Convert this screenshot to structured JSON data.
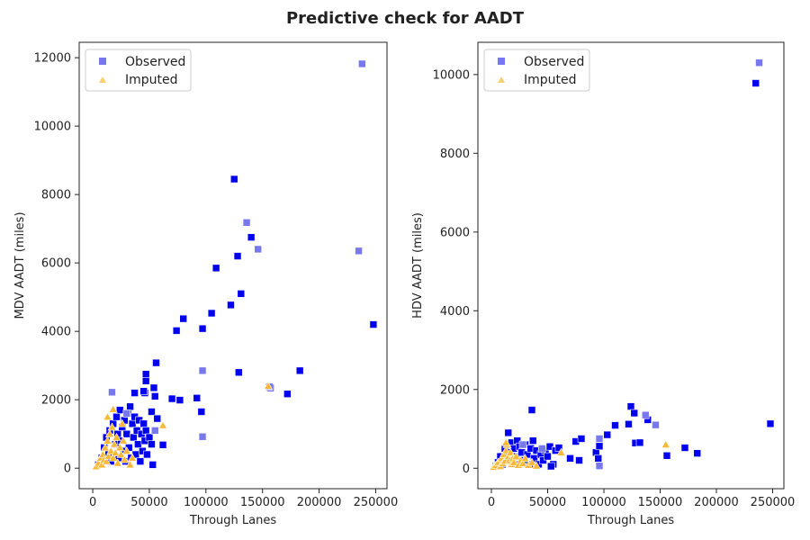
{
  "figure": {
    "title": "Predictive check for AADT"
  },
  "colors": {
    "observed_solid": "#0000ee",
    "observed_faded": "#7777ee",
    "imputed": "#f8b938",
    "imputed_faded": "#f9cf72",
    "axis": "#222222"
  },
  "chart_data": [
    {
      "type": "scatter",
      "xlabel": "Through Lanes",
      "ylabel": "MDV AADT (miles)",
      "xlim": [
        -12000,
        260000
      ],
      "ylim": [
        -600,
        12450
      ],
      "xticks": [
        0,
        50000,
        100000,
        150000,
        200000,
        250000
      ],
      "yticks": [
        0,
        2000,
        4000,
        6000,
        8000,
        10000,
        12000
      ],
      "legend": {
        "position": "top-left",
        "entries": [
          "Observed",
          "Imputed"
        ]
      },
      "series": [
        {
          "name": "Observed",
          "marker": "square",
          "points": [
            [
              5000,
              100,
              1
            ],
            [
              8000,
              300,
              1
            ],
            [
              10000,
              600,
              1
            ],
            [
              12000,
              900,
              1
            ],
            [
              14000,
              400,
              1
            ],
            [
              15000,
              1100,
              1
            ],
            [
              16000,
              200,
              1
            ],
            [
              18000,
              1300,
              1
            ],
            [
              20000,
              700,
              1
            ],
            [
              21000,
              1500,
              1
            ],
            [
              22000,
              1000,
              1
            ],
            [
              23000,
              300,
              1
            ],
            [
              24000,
              1700,
              1
            ],
            [
              25000,
              800,
              1
            ],
            [
              26000,
              1200,
              1
            ],
            [
              27000,
              500,
              1
            ],
            [
              28000,
              1400,
              1
            ],
            [
              29000,
              200,
              1
            ],
            [
              30000,
              1000,
              1
            ],
            [
              31000,
              1600,
              1
            ],
            [
              32000,
              600,
              1
            ],
            [
              33000,
              1800,
              1
            ],
            [
              34000,
              300,
              1
            ],
            [
              35000,
              1300,
              1
            ],
            [
              36000,
              900,
              1
            ],
            [
              37000,
              1500,
              1
            ],
            [
              38000,
              400,
              1
            ],
            [
              39000,
              1100,
              1
            ],
            [
              40000,
              700,
              1
            ],
            [
              41000,
              1400,
              1
            ],
            [
              42000,
              200,
              1
            ],
            [
              43000,
              1000,
              1
            ],
            [
              44000,
              500,
              1
            ],
            [
              45000,
              1300,
              1
            ],
            [
              46000,
              800,
              1
            ],
            [
              47000,
              1100,
              1
            ],
            [
              48000,
              400,
              1
            ],
            [
              50000,
              900,
              1
            ],
            [
              52000,
              700,
              1
            ],
            [
              53000,
              100,
              1
            ],
            [
              37000,
              2200,
              1
            ],
            [
              46000,
              2200,
              1
            ],
            [
              47000,
              2550,
              1
            ],
            [
              47000,
              2750,
              1
            ],
            [
              55000,
              2100,
              1
            ],
            [
              54000,
              2350,
              1
            ],
            [
              56000,
              3080,
              1
            ],
            [
              52000,
              1650,
              1
            ],
            [
              57000,
              1450,
              1
            ],
            [
              62000,
              680,
              1
            ],
            [
              70000,
              2030,
              1
            ],
            [
              77000,
              1990,
              1
            ],
            [
              92000,
              2050,
              1
            ],
            [
              96000,
              1650,
              1
            ],
            [
              74000,
              4020,
              1
            ],
            [
              80000,
              4370,
              1
            ],
            [
              97000,
              4080,
              1
            ],
            [
              105000,
              4530,
              1
            ],
            [
              109000,
              5850,
              1
            ],
            [
              122000,
              4770,
              1
            ],
            [
              128000,
              6200,
              1
            ],
            [
              131000,
              5100,
              1
            ],
            [
              140000,
              6750,
              1
            ],
            [
              125000,
              8450,
              1
            ],
            [
              129000,
              2800,
              1
            ],
            [
              172000,
              2170,
              1
            ],
            [
              183000,
              2850,
              1
            ],
            [
              248000,
              4200,
              1
            ],
            [
              157000,
              2350,
              1
            ],
            [
              45000,
              2250,
              1
            ],
            [
              17000,
              2220,
              0
            ],
            [
              97000,
              2850,
              0
            ],
            [
              97000,
              920,
              0
            ],
            [
              136000,
              7180,
              0
            ],
            [
              146000,
              6400,
              0
            ],
            [
              235000,
              6350,
              0
            ],
            [
              238000,
              11820,
              0
            ],
            [
              55000,
              1100,
              0
            ],
            [
              30000,
              1600,
              0
            ],
            [
              156000,
              2380,
              0
            ]
          ]
        },
        {
          "name": "Imputed",
          "marker": "triangle",
          "points": [
            [
              3000,
              50,
              1
            ],
            [
              5000,
              150,
              1
            ],
            [
              7000,
              300,
              1
            ],
            [
              8000,
              100,
              1
            ],
            [
              9000,
              400,
              1
            ],
            [
              10000,
              250,
              1
            ],
            [
              11000,
              600,
              1
            ],
            [
              12000,
              200,
              1
            ],
            [
              13000,
              800,
              1
            ],
            [
              14000,
              350,
              1
            ],
            [
              15000,
              1000,
              1
            ],
            [
              16000,
              500,
              1
            ],
            [
              17000,
              1200,
              1
            ],
            [
              18000,
              300,
              1
            ],
            [
              19000,
              700,
              1
            ],
            [
              20000,
              450,
              1
            ],
            [
              21000,
              900,
              1
            ],
            [
              22000,
              150,
              1
            ],
            [
              24000,
              600,
              1
            ],
            [
              25000,
              400,
              1
            ],
            [
              27000,
              800,
              1
            ],
            [
              28000,
              250,
              1
            ],
            [
              30000,
              500,
              1
            ],
            [
              33000,
              100,
              1
            ],
            [
              35000,
              300,
              1
            ],
            [
              18000,
              1720,
              1
            ],
            [
              62000,
              1250,
              1
            ],
            [
              155000,
              2400,
              1
            ],
            [
              26000,
              1300,
              1
            ],
            [
              13000,
              1500,
              1
            ]
          ]
        }
      ]
    },
    {
      "type": "scatter",
      "xlabel": "Through Lanes",
      "ylabel": "HDV AADT (miles)",
      "xlim": [
        -12000,
        260000
      ],
      "ylim": [
        -520,
        10820
      ],
      "xticks": [
        0,
        50000,
        100000,
        150000,
        200000,
        250000
      ],
      "yticks": [
        0,
        2000,
        4000,
        6000,
        8000,
        10000
      ],
      "legend": {
        "position": "top-left",
        "entries": [
          "Observed",
          "Imputed"
        ]
      },
      "series": [
        {
          "name": "Observed",
          "marker": "square",
          "points": [
            [
              4000,
              50,
              1
            ],
            [
              6000,
              150,
              1
            ],
            [
              8000,
              300,
              1
            ],
            [
              10000,
              100,
              1
            ],
            [
              12000,
              500,
              1
            ],
            [
              14000,
              250,
              1
            ],
            [
              15000,
              900,
              1
            ],
            [
              16000,
              400,
              1
            ],
            [
              18000,
              650,
              1
            ],
            [
              19000,
              150,
              1
            ],
            [
              20000,
              500,
              1
            ],
            [
              22000,
              300,
              1
            ],
            [
              23000,
              700,
              1
            ],
            [
              24000,
              100,
              1
            ],
            [
              25000,
              550,
              1
            ],
            [
              27000,
              400,
              1
            ],
            [
              28000,
              200,
              1
            ],
            [
              30000,
              600,
              1
            ],
            [
              32000,
              350,
              1
            ],
            [
              34000,
              100,
              1
            ],
            [
              35000,
              500,
              1
            ],
            [
              36000,
              1480,
              1
            ],
            [
              37000,
              700,
              1
            ],
            [
              38000,
              250,
              1
            ],
            [
              40000,
              450,
              1
            ],
            [
              42000,
              100,
              1
            ],
            [
              44000,
              350,
              1
            ],
            [
              46000,
              200,
              1
            ],
            [
              48000,
              450,
              1
            ],
            [
              50000,
              300,
              1
            ],
            [
              52000,
              550,
              1
            ],
            [
              55000,
              100,
              1
            ],
            [
              57000,
              450,
              1
            ],
            [
              60000,
              520,
              1
            ],
            [
              70000,
              250,
              1
            ],
            [
              75000,
              680,
              1
            ],
            [
              78000,
              200,
              1
            ],
            [
              80000,
              750,
              1
            ],
            [
              93000,
              400,
              1
            ],
            [
              96000,
              560,
              1
            ],
            [
              95000,
              250,
              1
            ],
            [
              103000,
              850,
              1
            ],
            [
              110000,
              1090,
              1
            ],
            [
              122000,
              1120,
              1
            ],
            [
              124000,
              1570,
              1
            ],
            [
              127000,
              1400,
              1
            ],
            [
              128000,
              640,
              1
            ],
            [
              132000,
              650,
              1
            ],
            [
              139000,
              1230,
              1
            ],
            [
              156000,
              320,
              1
            ],
            [
              172000,
              520,
              1
            ],
            [
              183000,
              380,
              1
            ],
            [
              235000,
              9780,
              1
            ],
            [
              248000,
              1130,
              1
            ],
            [
              53000,
              50,
              1
            ],
            [
              96000,
              60,
              0
            ],
            [
              96000,
              750,
              0
            ],
            [
              137000,
              1350,
              0
            ],
            [
              146000,
              1100,
              0
            ],
            [
              238000,
              10300,
              0
            ],
            [
              45000,
              500,
              0
            ],
            [
              28000,
              600,
              0
            ]
          ]
        },
        {
          "name": "Imputed",
          "marker": "triangle",
          "points": [
            [
              2000,
              30,
              1
            ],
            [
              4000,
              80,
              1
            ],
            [
              6000,
              150,
              1
            ],
            [
              8000,
              50,
              1
            ],
            [
              9000,
              250,
              1
            ],
            [
              10000,
              120,
              1
            ],
            [
              11000,
              350,
              1
            ],
            [
              12000,
              180,
              1
            ],
            [
              13000,
              450,
              1
            ],
            [
              14000,
              600,
              1
            ],
            [
              15000,
              300,
              1
            ],
            [
              16000,
              200,
              1
            ],
            [
              17000,
              400,
              1
            ],
            [
              18000,
              100,
              1
            ],
            [
              19000,
              250,
              1
            ],
            [
              20000,
              150,
              1
            ],
            [
              22000,
              300,
              1
            ],
            [
              24000,
              80,
              1
            ],
            [
              26000,
              200,
              1
            ],
            [
              28000,
              120,
              1
            ],
            [
              30000,
              250,
              1
            ],
            [
              33000,
              80,
              1
            ],
            [
              36000,
              150,
              1
            ],
            [
              40000,
              60,
              1
            ],
            [
              62000,
              400,
              1
            ],
            [
              155000,
              600,
              1
            ],
            [
              13000,
              650,
              1
            ]
          ]
        }
      ]
    }
  ]
}
